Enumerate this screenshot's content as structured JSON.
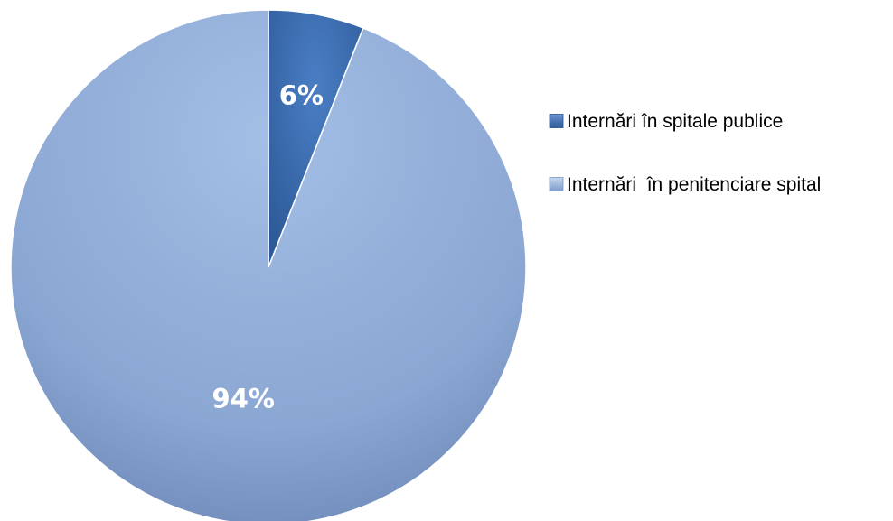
{
  "chart_data": {
    "type": "pie",
    "categories": [
      "Internări în spitale publice",
      "Internări  în penitenciare spital"
    ],
    "values": [
      6,
      94
    ],
    "data_labels": [
      "6%",
      "94%"
    ],
    "colors": [
      "#3d6fb6",
      "#93b0dc"
    ],
    "title": "",
    "legend_position": "right",
    "start_angle": "top",
    "direction": "clockwise"
  }
}
